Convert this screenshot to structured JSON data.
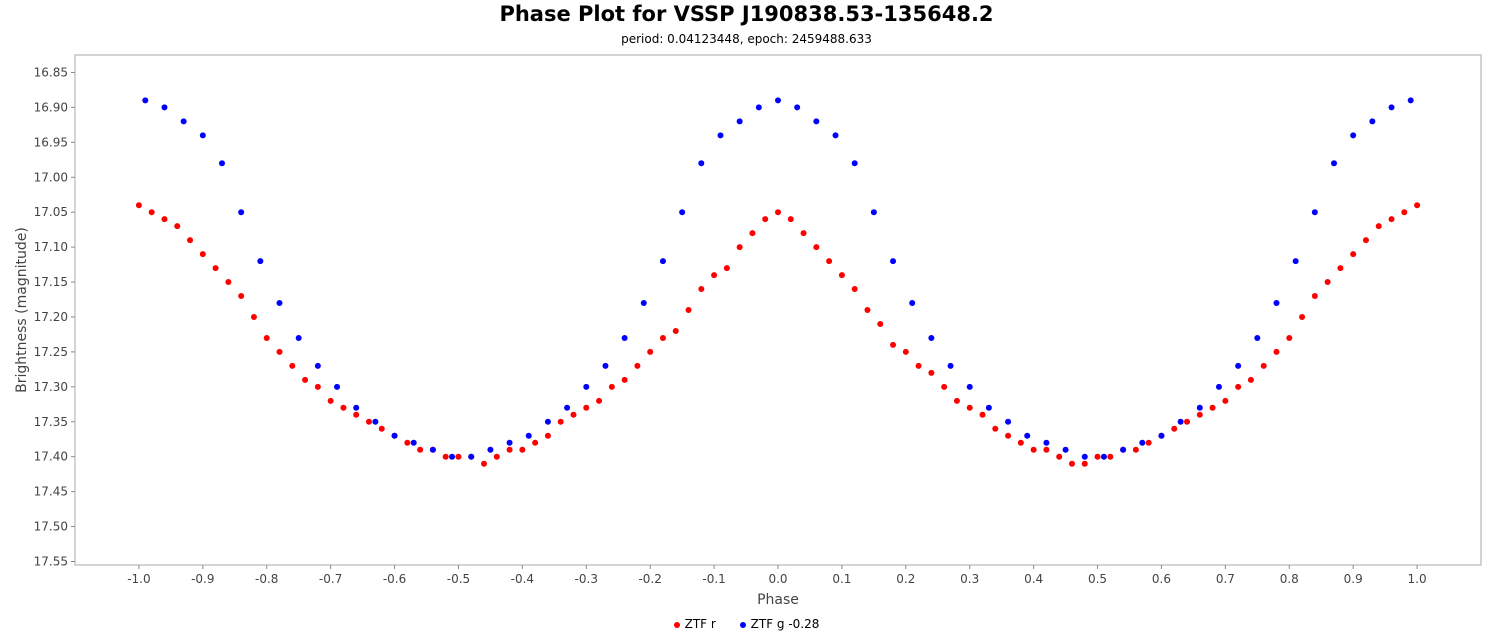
{
  "chart_data": {
    "type": "scatter",
    "title": "Phase Plot for VSSP J190838.53-135648.2",
    "subtitle": "period: 0.04123448, epoch: 2459488.633",
    "xlabel": "Phase",
    "ylabel": "Brightness (magnitude)",
    "xlim": [
      -1.1,
      1.1
    ],
    "ylim": [
      17.555,
      16.825
    ],
    "y_inverted": true,
    "xticks": [
      -1.0,
      -0.9,
      -0.8,
      -0.7,
      -0.6,
      -0.5,
      -0.4,
      -0.3,
      -0.2,
      -0.1,
      0.0,
      0.1,
      0.2,
      0.3,
      0.4,
      0.5,
      0.6,
      0.7,
      0.8,
      0.9,
      1.0
    ],
    "xtick_labels": [
      "-1.0",
      "-0.9",
      "-0.8",
      "-0.7",
      "-0.6",
      "-0.5",
      "-0.4",
      "-0.3",
      "-0.2",
      "-0.1",
      "0.0",
      "0.1",
      "0.2",
      "0.3",
      "0.4",
      "0.5",
      "0.6",
      "0.7",
      "0.8",
      "0.9",
      "1.0"
    ],
    "yticks": [
      16.85,
      16.9,
      16.95,
      17.0,
      17.05,
      17.1,
      17.15,
      17.2,
      17.25,
      17.3,
      17.35,
      17.4,
      17.45,
      17.5,
      17.55
    ],
    "ytick_labels": [
      "16.85",
      "16.90",
      "16.95",
      "17.00",
      "17.05",
      "17.10",
      "17.15",
      "17.20",
      "17.25",
      "17.30",
      "17.35",
      "17.40",
      "17.45",
      "17.50",
      "17.55"
    ],
    "grid": false,
    "legend_position": "bottom-center",
    "series": [
      {
        "name": "ZTF r",
        "color": "#ff0000",
        "x": [
          0.0,
          0.02,
          -0.02,
          0.04,
          -0.04,
          0.06,
          -0.06,
          0.08,
          -0.08,
          0.1,
          -0.1,
          0.12,
          -0.12,
          0.14,
          -0.14,
          0.16,
          -0.16,
          0.18,
          -0.18,
          0.2,
          -0.2,
          0.22,
          -0.22,
          0.24,
          -0.24,
          0.26,
          -0.26,
          0.28,
          -0.28,
          0.3,
          -0.3,
          0.32,
          -0.32,
          0.34,
          -0.34,
          0.36,
          -0.36,
          0.38,
          -0.38,
          0.4,
          -0.4,
          0.42,
          -0.42,
          0.44,
          -0.44,
          0.46,
          -0.46,
          0.48,
          -0.48,
          0.5,
          -0.5,
          0.52,
          -0.52,
          0.54,
          -0.54,
          0.56,
          -0.56,
          0.58,
          -0.58,
          0.6,
          -0.6,
          0.62,
          -0.62,
          0.64,
          -0.64,
          0.66,
          -0.66,
          0.68,
          -0.68,
          0.7,
          -0.7,
          0.72,
          -0.72,
          0.74,
          -0.74,
          0.76,
          -0.76,
          0.78,
          -0.78,
          0.8,
          -0.8,
          0.82,
          -0.82,
          0.84,
          -0.84,
          0.86,
          -0.86,
          0.88,
          -0.88,
          0.9,
          -0.9,
          0.92,
          -0.92,
          0.94,
          -0.94,
          0.96,
          -0.96,
          0.98,
          -0.98,
          1.0,
          -1.0
        ],
        "y": [
          17.05,
          17.06,
          17.06,
          17.08,
          17.08,
          17.1,
          17.1,
          17.12,
          17.13,
          17.14,
          17.14,
          17.16,
          17.16,
          17.19,
          17.19,
          17.21,
          17.22,
          17.24,
          17.23,
          17.25,
          17.25,
          17.27,
          17.27,
          17.28,
          17.29,
          17.3,
          17.3,
          17.32,
          17.32,
          17.33,
          17.33,
          17.34,
          17.34,
          17.36,
          17.35,
          17.37,
          17.37,
          17.38,
          17.38,
          17.39,
          17.39,
          17.39,
          17.39,
          17.4,
          17.4,
          17.41,
          17.41,
          17.41,
          17.4,
          17.4,
          17.4,
          17.4,
          17.4,
          17.39,
          17.39,
          17.39,
          17.39,
          17.38,
          17.38,
          17.37,
          17.37,
          17.36,
          17.36,
          17.35,
          17.35,
          17.34,
          17.34,
          17.33,
          17.33,
          17.32,
          17.32,
          17.3,
          17.3,
          17.29,
          17.29,
          17.27,
          17.27,
          17.25,
          17.25,
          17.23,
          17.23,
          17.2,
          17.2,
          17.17,
          17.17,
          17.15,
          17.15,
          17.13,
          17.13,
          17.11,
          17.11,
          17.09,
          17.09,
          17.07,
          17.07,
          17.06,
          17.06,
          17.05,
          17.05,
          17.04,
          17.04
        ]
      },
      {
        "name": "ZTF g -0.28",
        "color": "#0000ff",
        "x": [
          0.0,
          0.03,
          -0.03,
          0.06,
          -0.06,
          0.09,
          -0.09,
          0.12,
          -0.12,
          0.15,
          -0.15,
          0.18,
          -0.18,
          0.21,
          -0.21,
          0.24,
          -0.24,
          0.27,
          -0.27,
          0.3,
          -0.3,
          0.33,
          -0.33,
          0.36,
          -0.36,
          0.39,
          -0.39,
          0.42,
          -0.42,
          0.45,
          -0.45,
          0.48,
          -0.48,
          0.51,
          -0.51,
          0.54,
          -0.54,
          0.57,
          -0.57,
          0.6,
          -0.6,
          0.63,
          -0.63,
          0.66,
          -0.66,
          0.69,
          -0.69,
          0.72,
          -0.72,
          0.75,
          -0.75,
          0.78,
          -0.78,
          0.81,
          -0.81,
          0.84,
          -0.84,
          0.87,
          -0.87,
          0.9,
          -0.9,
          0.93,
          -0.93,
          0.96,
          -0.96,
          0.99,
          -0.99
        ],
        "y": [
          16.89,
          16.9,
          16.9,
          16.92,
          16.92,
          16.94,
          16.94,
          16.98,
          16.98,
          17.05,
          17.05,
          17.12,
          17.12,
          17.18,
          17.18,
          17.23,
          17.23,
          17.27,
          17.27,
          17.3,
          17.3,
          17.33,
          17.33,
          17.35,
          17.35,
          17.37,
          17.37,
          17.38,
          17.38,
          17.39,
          17.39,
          17.4,
          17.4,
          17.4,
          17.4,
          17.39,
          17.39,
          17.38,
          17.38,
          17.37,
          17.37,
          17.35,
          17.35,
          17.33,
          17.33,
          17.3,
          17.3,
          17.27,
          17.27,
          17.23,
          17.23,
          17.18,
          17.18,
          17.12,
          17.12,
          17.05,
          17.05,
          16.98,
          16.98,
          16.94,
          16.94,
          16.92,
          16.92,
          16.9,
          16.9,
          16.89,
          16.89
        ]
      }
    ]
  }
}
